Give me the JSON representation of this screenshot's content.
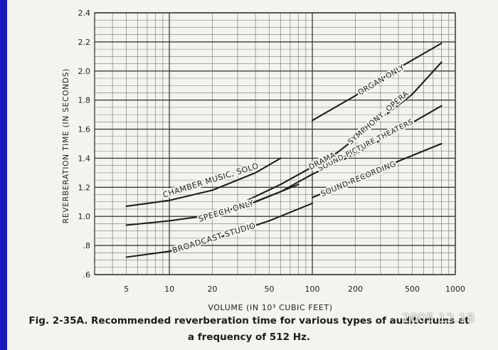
{
  "chart_data": {
    "type": "line",
    "xscale": "log",
    "xlim": [
      3,
      1000
    ],
    "ylim": [
      0.6,
      2.4
    ],
    "grid": true,
    "xlabel": "VOLUME (IN 10³ CUBIC FEET)",
    "ylabel": "REVERBERATION TIME (IN SECONDS)",
    "xticks": [
      {
        "value": 5,
        "label": "5"
      },
      {
        "value": 10,
        "label": "10"
      },
      {
        "value": 20,
        "label": "20"
      },
      {
        "value": 50,
        "label": "50"
      },
      {
        "value": 100,
        "label": "100"
      },
      {
        "value": 200,
        "label": "200"
      },
      {
        "value": 500,
        "label": "500"
      },
      {
        "value": 1000,
        "label": "1000"
      }
    ],
    "yticks": [
      {
        "value": 0.6,
        "label": ".6"
      },
      {
        "value": 0.8,
        "label": ".8"
      },
      {
        "value": 1.0,
        "label": "1.0"
      },
      {
        "value": 1.2,
        "label": "1.2"
      },
      {
        "value": 1.4,
        "label": "1.4"
      },
      {
        "value": 1.6,
        "label": "1.6"
      },
      {
        "value": 1.8,
        "label": "1.8"
      },
      {
        "value": 2.0,
        "label": "2.0"
      },
      {
        "value": 2.2,
        "label": "2.2"
      },
      {
        "value": 2.4,
        "label": "2.4"
      }
    ],
    "series": [
      {
        "name": "CHAMBER MUSIC, SOLO",
        "x": [
          5,
          10,
          20,
          40,
          60
        ],
        "y": [
          1.07,
          1.11,
          1.18,
          1.3,
          1.4
        ]
      },
      {
        "name": "SPEECH ONLY",
        "x": [
          5,
          10,
          20,
          40,
          80
        ],
        "y": [
          0.94,
          0.97,
          1.01,
          1.1,
          1.22
        ]
      },
      {
        "name": "BROADCAST STUDIO",
        "x": [
          5,
          10,
          20,
          50,
          100
        ],
        "y": [
          0.72,
          0.76,
          0.84,
          0.97,
          1.09
        ]
      },
      {
        "name": "SOUND RECORDING",
        "x": [
          100,
          200,
          400,
          800
        ],
        "y": [
          1.13,
          1.25,
          1.38,
          1.5
        ]
      },
      {
        "name": "SOUND-PICTURE THEATERS",
        "x": [
          35,
          60,
          100,
          200,
          400,
          800
        ],
        "y": [
          1.08,
          1.17,
          1.29,
          1.43,
          1.59,
          1.76
        ]
      },
      {
        "name": "DRAMA",
        "x": [
          35,
          60,
          100,
          150
        ],
        "y": [
          1.11,
          1.22,
          1.34,
          1.44
        ]
      },
      {
        "name": "SYMPHONY, OPERA",
        "x": [
          150,
          250,
          500,
          800
        ],
        "y": [
          1.44,
          1.61,
          1.84,
          2.06
        ]
      },
      {
        "name": "ORGAN ONLY",
        "x": [
          100,
          200,
          400,
          800
        ],
        "y": [
          1.66,
          1.83,
          2.02,
          2.19
        ]
      }
    ]
  },
  "caption": {
    "line1": "Fig. 2-35A. Recommended reverberation time for various types of auditoriums at",
    "line2": "a frequency of 512 Hz."
  },
  "stamp": "2005.12.18",
  "colors": {
    "line": "#1e1e1e",
    "grid": "#2a2a2a",
    "paper": "#f4f3ee",
    "edge": "#1a1ab8"
  }
}
